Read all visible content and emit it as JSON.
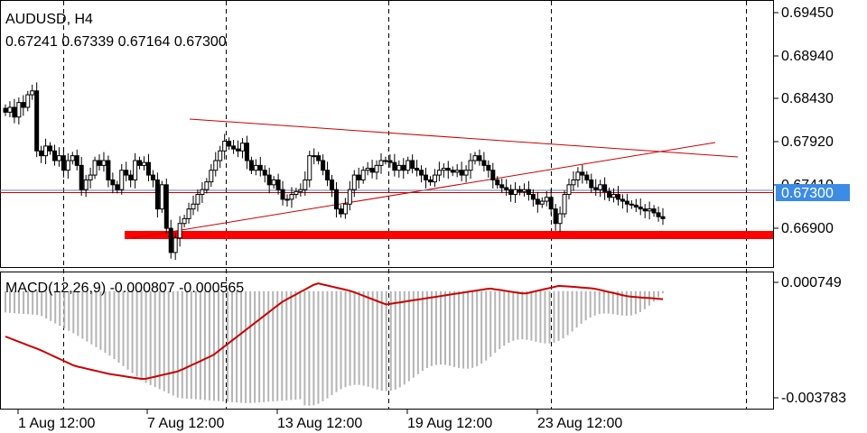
{
  "header": {
    "symbol": "AUDUSD, H4",
    "ohlc": "0.67241 0.67339 0.67164 0.67300"
  },
  "price_axis": {
    "ticks": [
      "0.69450",
      "0.68940",
      "0.68430",
      "0.67920",
      "0.67410",
      "0.66900"
    ],
    "current_label": "0.67300"
  },
  "macd_panel": {
    "label": "MACD(12,26,9) -0.000807 -0.000565",
    "ticks": [
      "0.000749",
      "-0.003783"
    ]
  },
  "time_axis": {
    "labels": [
      "1 Aug 12:00",
      "7 Aug 12:00",
      "13 Aug 12:00",
      "19 Aug 12:00",
      "23 Aug 12:00"
    ]
  },
  "colors": {
    "trendline": "#cc0000",
    "support_zone": "#ff0000",
    "current_price_badge": "#3c8ce6",
    "signal_line": "#cc0000",
    "histogram": "#b4b4b4"
  },
  "chart_data": [
    {
      "type": "candlestick",
      "title": "AUDUSD, H4",
      "ylim": [
        0.668,
        0.6955
      ],
      "closes": [
        0.684,
        0.6845,
        0.6835,
        0.685,
        0.6845,
        0.6858,
        0.6862,
        0.68,
        0.6795,
        0.6805,
        0.68,
        0.679,
        0.6795,
        0.678,
        0.679,
        0.6795,
        0.6785,
        0.676,
        0.677,
        0.6775,
        0.679,
        0.6785,
        0.679,
        0.677,
        0.6765,
        0.676,
        0.678,
        0.6775,
        0.677,
        0.679,
        0.6785,
        0.6788,
        0.6775,
        0.677,
        0.674,
        0.6765,
        0.672,
        0.6695,
        0.671,
        0.6725,
        0.673,
        0.674,
        0.6745,
        0.6755,
        0.676,
        0.6768,
        0.678,
        0.679,
        0.68,
        0.681,
        0.6805,
        0.6802,
        0.68,
        0.6808,
        0.679,
        0.678,
        0.6785,
        0.678,
        0.6775,
        0.6765,
        0.677,
        0.676,
        0.675,
        0.675,
        0.6755,
        0.6758,
        0.676,
        0.677,
        0.6795,
        0.6795,
        0.679,
        0.678,
        0.677,
        0.676,
        0.674,
        0.6735,
        0.6745,
        0.676,
        0.6775,
        0.677,
        0.678,
        0.6782,
        0.6778,
        0.6785,
        0.679,
        0.679,
        0.6788,
        0.678,
        0.6785,
        0.678,
        0.679,
        0.6782,
        0.678,
        0.6775,
        0.677,
        0.6768,
        0.6775,
        0.678,
        0.6782,
        0.678,
        0.6778,
        0.678,
        0.6775,
        0.678,
        0.679,
        0.6795,
        0.679,
        0.6785,
        0.678,
        0.677,
        0.6765,
        0.6762,
        0.676,
        0.6755,
        0.676,
        0.6758,
        0.676,
        0.6755,
        0.675,
        0.6745,
        0.6748,
        0.6752,
        0.674,
        0.6725,
        0.6735,
        0.6755,
        0.6765,
        0.677,
        0.6778,
        0.6775,
        0.677,
        0.6762,
        0.676,
        0.6765,
        0.6758,
        0.6752,
        0.6755,
        0.675,
        0.6748,
        0.6745,
        0.6744,
        0.6742,
        0.674,
        0.6738,
        0.674,
        0.6736,
        0.6732,
        0.673
      ]
    },
    {
      "type": "bar+line",
      "title": "MACD(12,26,9)",
      "values_label": "-0.000807 -0.000565",
      "ylim": [
        -0.0042,
        0.0009
      ],
      "histogram_desc": [
        -0.6,
        -0.7,
        -1.4,
        -2.2,
        -3.2,
        -3.8,
        -3.9,
        -4.0,
        -3.9,
        -3.8,
        -3.6,
        -3.3,
        -3.0,
        -2.6,
        -2.2,
        -1.8,
        -1.4,
        -1.0,
        -0.5,
        0.0
      ],
      "signal_desc": [
        -1.5,
        -2.0,
        -2.6,
        -2.9,
        -3.1,
        -2.8,
        -2.2,
        -1.2,
        -0.2,
        0.5,
        0.2,
        -0.3,
        -0.1,
        0.1,
        0.3,
        0.1,
        0.4,
        0.3,
        0.0,
        -0.1
      ]
    }
  ]
}
